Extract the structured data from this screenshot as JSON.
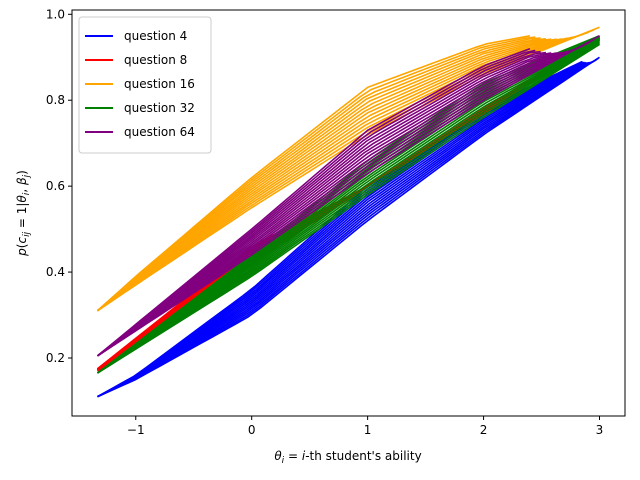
{
  "chart_data": {
    "type": "line",
    "xlabel_parts": {
      "theta": "θ",
      "sub": "i",
      "rest": " = ",
      "i": "i",
      "suffix": "-th student's ability"
    },
    "ylabel_parts": {
      "p": "p",
      "open": "(",
      "c": "c",
      "csub": "ij",
      "eq": " = 1|",
      "theta": "θ",
      "tsub": "i",
      "comma": ", ",
      "beta": "β",
      "bsub": "j",
      "close": ")"
    },
    "xlim": [
      -1.55,
      3.22
    ],
    "ylim": [
      0.065,
      1.01
    ],
    "x_ticks": [
      -1,
      0,
      1,
      2,
      3
    ],
    "x_tick_labels": [
      "−1",
      "0",
      "1",
      "2",
      "3"
    ],
    "y_ticks": [
      0.2,
      0.4,
      0.6,
      0.8,
      1.0
    ],
    "y_tick_labels": [
      "0.2",
      "0.4",
      "0.6",
      "0.8",
      "1.0"
    ],
    "grid": false,
    "legend_position": "upper-left",
    "series": [
      {
        "name": "question 4",
        "color": "#0000ff",
        "band_low": {
          "x": [
            -1.33,
            -1.0,
            0.0,
            1.0,
            2.0,
            3.0
          ],
          "y": [
            0.11,
            0.15,
            0.3,
            0.52,
            0.72,
            0.9
          ]
        },
        "band_high": {
          "x": [
            -1.33,
            -1.0,
            0.0,
            1.0,
            2.0,
            2.85
          ],
          "y": [
            0.11,
            0.16,
            0.36,
            0.6,
            0.78,
            0.89
          ]
        }
      },
      {
        "name": "question 8",
        "color": "#ff0000",
        "band_low": {
          "x": [
            -1.33,
            0.0,
            1.0,
            2.0,
            3.0
          ],
          "y": [
            0.17,
            0.42,
            0.6,
            0.77,
            0.94
          ]
        },
        "band_high": {
          "x": [
            -1.33,
            0.0,
            1.0,
            2.0,
            3.0
          ],
          "y": [
            0.175,
            0.46,
            0.6,
            0.78,
            0.95
          ]
        }
      },
      {
        "name": "question 16",
        "color": "#ffa500",
        "band_low": {
          "x": [
            -1.33,
            -1.0,
            0.0,
            1.0,
            2.0,
            3.0
          ],
          "y": [
            0.31,
            0.37,
            0.55,
            0.72,
            0.86,
            0.97
          ]
        },
        "band_high": {
          "x": [
            -1.33,
            -1.0,
            0.0,
            1.0,
            2.0,
            2.4
          ],
          "y": [
            0.31,
            0.39,
            0.62,
            0.83,
            0.93,
            0.95
          ]
        }
      },
      {
        "name": "question 32",
        "color": "#008000",
        "band_low": {
          "x": [
            -1.33,
            0.0,
            1.0,
            2.0,
            3.0
          ],
          "y": [
            0.165,
            0.39,
            0.58,
            0.76,
            0.93
          ]
        },
        "band_high": {
          "x": [
            -1.33,
            0.0,
            1.0,
            2.0,
            3.0
          ],
          "y": [
            0.165,
            0.44,
            0.66,
            0.84,
            0.95
          ]
        }
      },
      {
        "name": "question 64",
        "color": "#800080",
        "band_low": {
          "x": [
            -1.33,
            0.0,
            1.0,
            2.0,
            3.0
          ],
          "y": [
            0.205,
            0.44,
            0.63,
            0.8,
            0.95
          ]
        },
        "band_high": {
          "x": [
            -1.33,
            0.0,
            1.0,
            2.0,
            2.4
          ],
          "y": [
            0.205,
            0.5,
            0.73,
            0.88,
            0.92
          ]
        }
      }
    ]
  }
}
